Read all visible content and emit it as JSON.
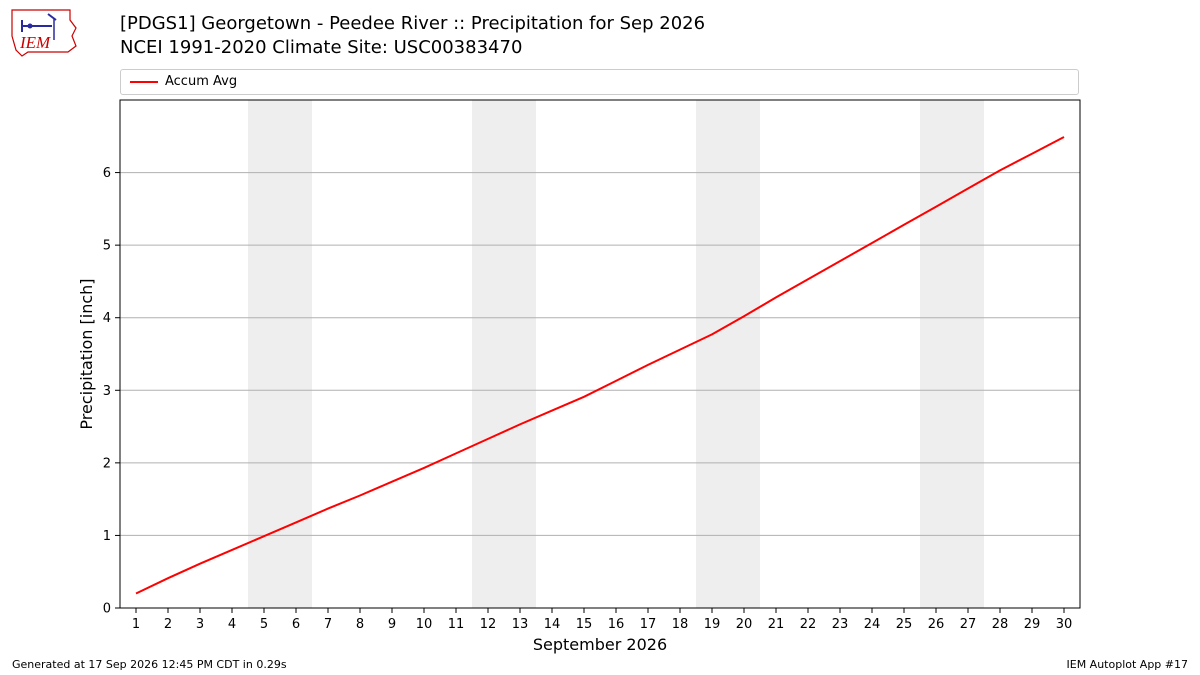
{
  "title_line1": "[PDGS1] Georgetown - Peedee River :: Precipitation for Sep 2026",
  "title_line2": "NCEI 1991-2020 Climate Site: USC00383470",
  "logo_text": "IEM",
  "footer_left": "Generated at 17 Sep 2026 12:45 PM CDT in 0.29s",
  "footer_right": "IEM Autoplot App #17",
  "colors": {
    "line": "#ff0000",
    "weekend_band": "#eeeeee",
    "grid": "#b0b0b0",
    "logo": "#cc0000"
  },
  "chart_data": {
    "type": "line",
    "xlabel": "September 2026",
    "ylabel": "Precipitation [inch]",
    "xlim": [
      0.5,
      30.5
    ],
    "ylim": [
      0,
      7
    ],
    "yticks": [
      0,
      1,
      2,
      3,
      4,
      5,
      6
    ],
    "x": [
      1,
      2,
      3,
      4,
      5,
      6,
      7,
      8,
      9,
      10,
      11,
      12,
      13,
      14,
      15,
      16,
      17,
      18,
      19,
      20,
      21,
      22,
      23,
      24,
      25,
      26,
      27,
      28,
      29,
      30
    ],
    "series": [
      {
        "name": "Accum Avg",
        "values": [
          0.2,
          0.41,
          0.61,
          0.8,
          0.99,
          1.18,
          1.37,
          1.55,
          1.74,
          1.93,
          2.13,
          2.33,
          2.53,
          2.72,
          2.91,
          3.13,
          3.35,
          3.56,
          3.77,
          4.02,
          4.28,
          4.53,
          4.78,
          5.03,
          5.28,
          5.53,
          5.78,
          6.03,
          6.26,
          6.49
        ]
      }
    ],
    "weekend_bands": [
      [
        4.5,
        6.5
      ],
      [
        11.5,
        13.5
      ],
      [
        18.5,
        20.5
      ],
      [
        25.5,
        27.5
      ]
    ],
    "grid": "horizontal",
    "legend": "top"
  }
}
